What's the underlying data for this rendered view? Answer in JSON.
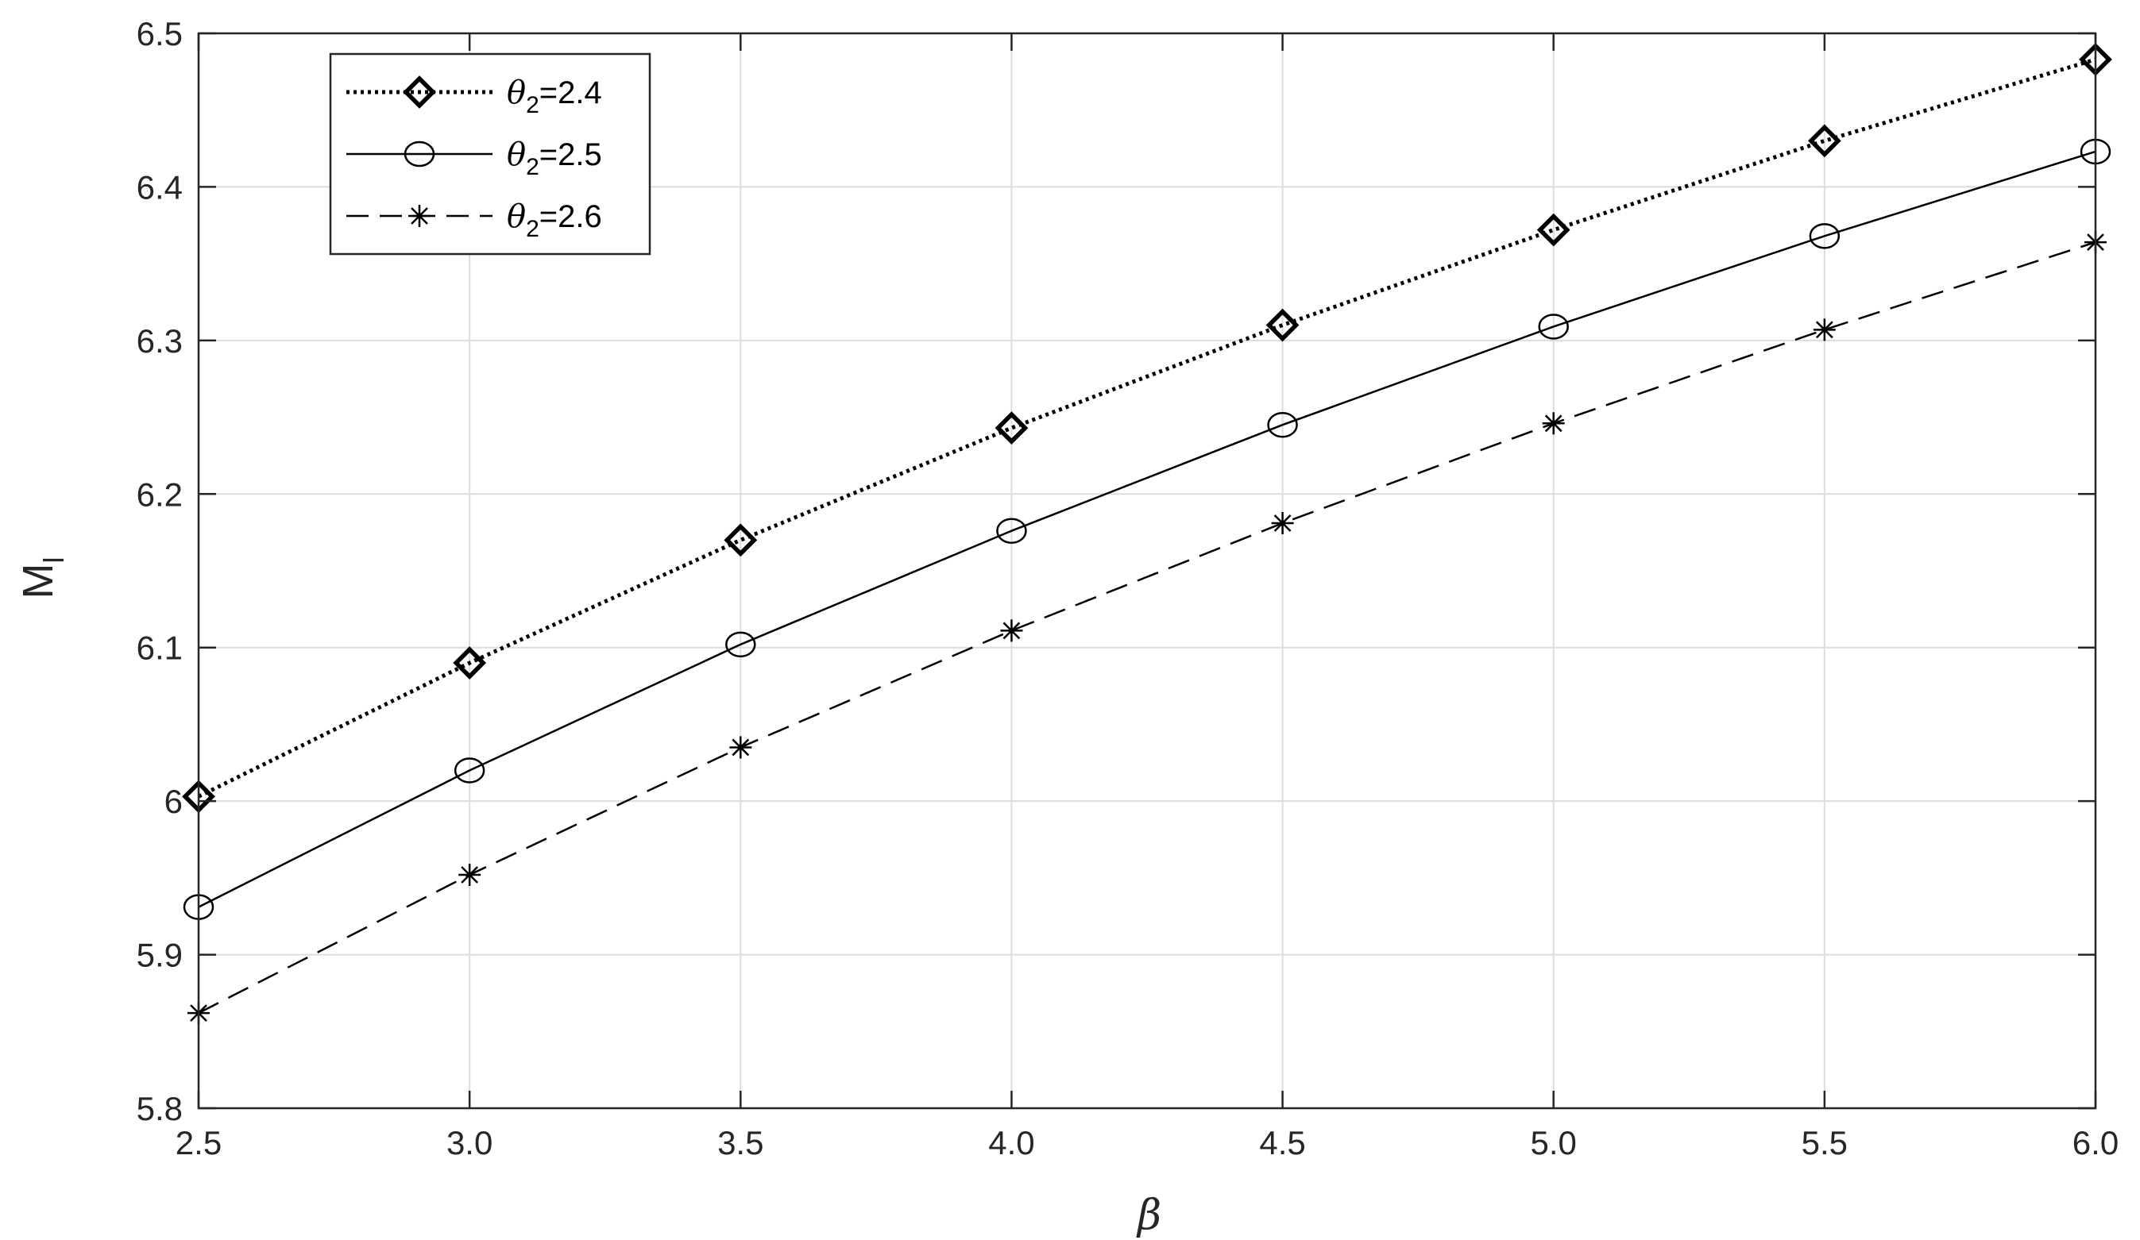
{
  "chart_data": {
    "type": "line",
    "xlabel": "β",
    "ylabel_main": "M",
    "ylabel_sub": "l",
    "xlim": [
      2.5,
      6.0
    ],
    "ylim": [
      5.8,
      6.5
    ],
    "xticks": [
      "2.5",
      "3.0",
      "3.5",
      "4.0",
      "4.5",
      "5.0",
      "5.5",
      "6.0"
    ],
    "yticks": [
      "5.8",
      "5.9",
      "6",
      "6.1",
      "6.2",
      "6.3",
      "6.4",
      "6.5"
    ],
    "grid": true,
    "legend_position": "top-left",
    "x": [
      2.5,
      3.0,
      3.5,
      4.0,
      4.5,
      5.0,
      5.5,
      6.0
    ],
    "series": [
      {
        "legend_symbol": "θ",
        "legend_sub": "2",
        "legend_value": "=2.4",
        "line_style": "dotted",
        "marker": "diamond",
        "values": [
          6.003,
          6.09,
          6.17,
          6.243,
          6.31,
          6.372,
          6.43,
          6.483
        ]
      },
      {
        "legend_symbol": "θ",
        "legend_sub": "2",
        "legend_value": "=2.5",
        "line_style": "solid",
        "marker": "circle",
        "values": [
          5.931,
          6.02,
          6.102,
          6.176,
          6.245,
          6.309,
          6.368,
          6.423
        ]
      },
      {
        "legend_symbol": "θ",
        "legend_sub": "2",
        "legend_value": "=2.6",
        "line_style": "dashed",
        "marker": "asterisk",
        "values": [
          5.862,
          5.952,
          6.035,
          6.111,
          6.181,
          6.246,
          6.307,
          6.364
        ]
      }
    ]
  }
}
